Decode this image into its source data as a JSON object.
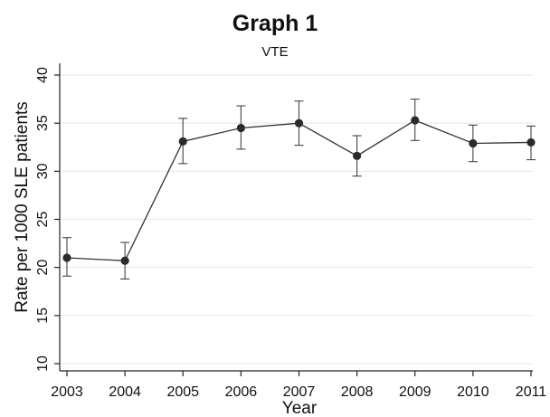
{
  "chart_data": {
    "type": "line",
    "title": "Graph 1",
    "subtitle": "VTE",
    "xlabel": "Year",
    "ylabel": "Rate per 1000 SLE patients",
    "x": [
      2003,
      2004,
      2005,
      2006,
      2007,
      2008,
      2009,
      2010,
      2011
    ],
    "x_tick_labels": [
      "2003",
      "2004",
      "2005",
      "2006",
      "2007",
      "2008",
      "2009",
      "2010",
      "2011"
    ],
    "series": [
      {
        "values": [
          21.0,
          20.7,
          33.1,
          34.5,
          35.0,
          31.6,
          35.3,
          32.9,
          33.0
        ],
        "ci_lower": [
          19.1,
          18.8,
          30.8,
          32.3,
          32.7,
          29.5,
          33.2,
          31.0,
          31.2
        ],
        "ci_upper": [
          23.1,
          22.6,
          35.5,
          36.8,
          37.3,
          33.7,
          37.5,
          34.8,
          34.7
        ]
      }
    ],
    "ylim": [
      10,
      40
    ],
    "y_ticks": [
      10,
      15,
      20,
      25,
      30,
      35,
      40
    ],
    "y_tick_labels": [
      "10",
      "15",
      "20",
      "25",
      "30",
      "35",
      "40"
    ],
    "grid": true,
    "colors": {
      "line": "#333333",
      "marker": "#2b2b2b",
      "grid": "#e6e6e6",
      "axis": "#222222"
    }
  }
}
